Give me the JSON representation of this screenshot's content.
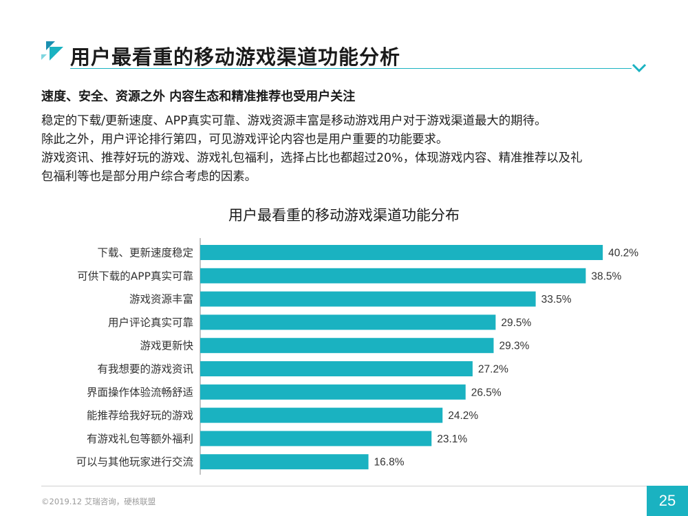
{
  "header": {
    "title": "用户最看重的移动游戏渠道功能分析"
  },
  "content": {
    "subtitle": "速度、安全、资源之外 内容生态和精准推荐也受用户关注",
    "paragraphs": [
      "稳定的下载/更新速度、APP真实可靠、游戏资源丰富是移动游戏用户对于游戏渠道最大的期待。",
      "除此之外，用户评论排行第四，可见游戏评论内容也是用户重要的功能要求。",
      "游戏资讯、推荐好玩的游戏、游戏礼包福利，选择占比也都超过20%，体现游戏内容、精准推荐以及礼",
      "包福利等也是部分用户综合考虑的因素。"
    ]
  },
  "chart_data": {
    "type": "bar",
    "orientation": "horizontal",
    "title": "用户最看重的移动游戏渠道功能分布",
    "categories": [
      "下载、更新速度稳定",
      "可供下载的APP真实可靠",
      "游戏资源丰富",
      "用户评论真实可靠",
      "游戏更新快",
      "有我想要的游戏资讯",
      "界面操作体验流畅舒适",
      "能推荐给我好玩的游戏",
      "有游戏礼包等额外福利",
      "可以与其他玩家进行交流"
    ],
    "values": [
      40.2,
      38.5,
      33.5,
      29.5,
      29.3,
      27.2,
      26.5,
      24.2,
      23.1,
      16.8
    ],
    "value_labels": [
      "40.2%",
      "38.5%",
      "33.5%",
      "29.5%",
      "29.3%",
      "27.2%",
      "26.5%",
      "24.2%",
      "23.1%",
      "16.8%"
    ],
    "unit": "%",
    "xlim": [
      0,
      45
    ],
    "grid": false,
    "bar_color": "#1ab2c1"
  },
  "footer": {
    "copyright": "©2019.12 艾瑞咨询，硬核联盟",
    "page_number": "25"
  },
  "colors": {
    "accent": "#1ab2c1",
    "accent_dark": "#1a8fb0"
  }
}
